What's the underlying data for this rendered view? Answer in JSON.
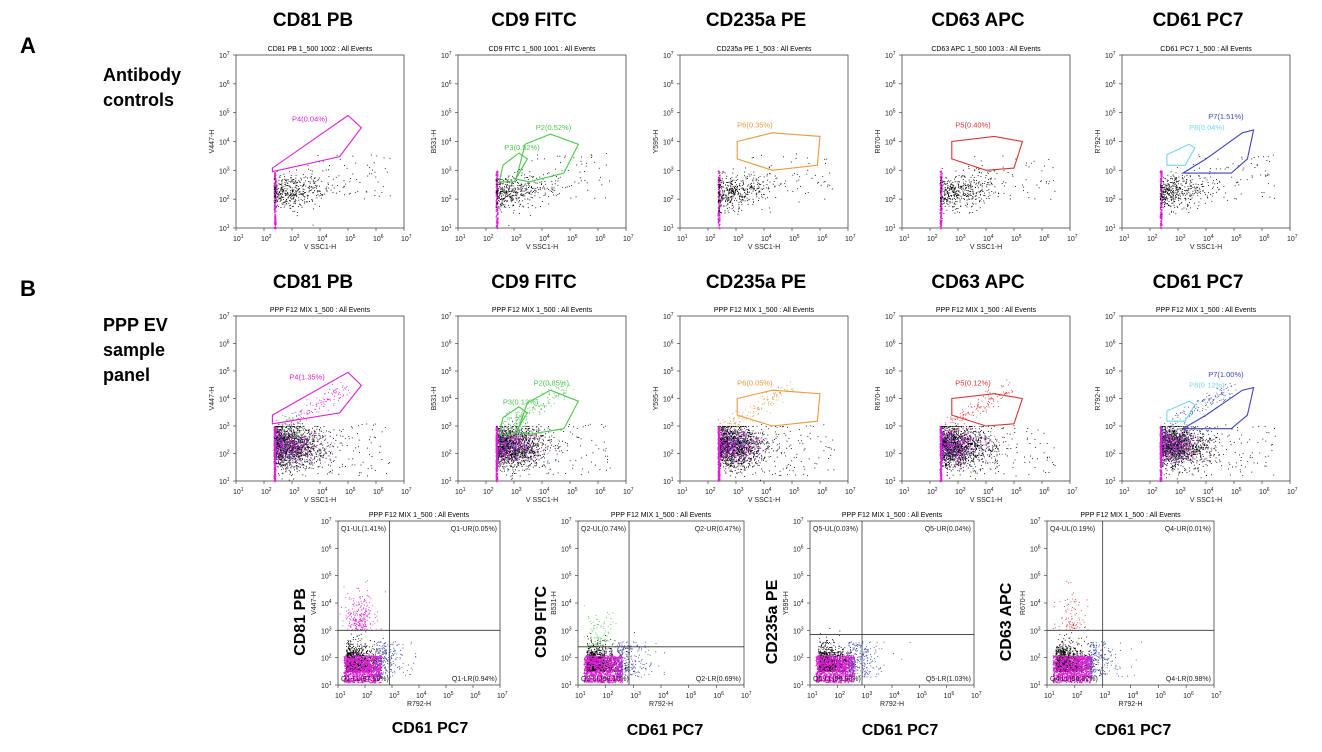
{
  "panels": [
    {
      "letter": "A",
      "side_label": [
        "Antibody",
        "controls"
      ]
    },
    {
      "letter": "B",
      "side_label": [
        "PPP EV",
        "sample",
        "panel"
      ]
    }
  ],
  "marker_titles_row1": [
    "CD81 PB",
    "CD9 FITC",
    "CD235a PE",
    "CD63 APC",
    "CD61 PC7"
  ],
  "marker_titles_row2": [
    "CD81 PB",
    "CD9 FITC",
    "CD235a PE",
    "CD63 APC",
    "CD61 PC7"
  ],
  "quad_axis_titles": {
    "y": [
      "CD81 PB",
      "CD9 FITC",
      "CD235a PE",
      "CD63 APC"
    ],
    "x": [
      "CD61 PC7",
      "CD61 PC7",
      "CD61 PC7",
      "CD61 PC7"
    ]
  },
  "colors": {
    "magenta": "#e020d8",
    "green": "#4cc84c",
    "orange": "#e89a40",
    "red": "#d83434",
    "blue": "#3848b8",
    "cyan": "#7ad8e8",
    "black": "#000000",
    "axis": "#555555"
  },
  "chart_data": [
    {
      "type": "scatter",
      "panel": "A",
      "title": "CD81 PB 1_500 1002 : All Events",
      "xlabel": "V SSC1-H",
      "ylabel": "V447-H",
      "xscale": "log",
      "yscale": "log",
      "xlim": [
        10,
        10000000
      ],
      "ylim": [
        10,
        10000000
      ],
      "gates": [
        {
          "name": "P4(0.04%)",
          "color": "magenta",
          "polygon": [
            [
              200,
              900
            ],
            [
              200,
              1200
            ],
            [
              100000,
              80000
            ],
            [
              300000,
              30000
            ],
            [
              50000,
              3000
            ]
          ],
          "label_at": [
            1000,
            50000
          ]
        }
      ],
      "dot_colors": [
        "black"
      ],
      "density": "control"
    },
    {
      "type": "scatter",
      "panel": "A",
      "title": "CD9 FITC 1_500 1001 : All Events",
      "xlabel": "V SSC1-H",
      "ylabel": "B531-H",
      "xscale": "log",
      "yscale": "log",
      "xlim": [
        10,
        10000000
      ],
      "ylim": [
        10,
        10000000
      ],
      "gates": [
        {
          "name": "P2(0.52%)",
          "color": "green",
          "polygon": [
            [
              1200,
              500
            ],
            [
              2500,
              8000
            ],
            [
              20000,
              18000
            ],
            [
              200000,
              8000
            ],
            [
              60000,
              800
            ],
            [
              3500,
              400
            ]
          ],
          "label_at": [
            6000,
            25000
          ]
        },
        {
          "name": "P3(0.52%)",
          "color": "green",
          "polygon": [
            [
              300,
              400
            ],
            [
              400,
              1500
            ],
            [
              1500,
              4000
            ],
            [
              3000,
              2500
            ],
            [
              1000,
              400
            ]
          ],
          "label_at": [
            450,
            5000
          ]
        }
      ],
      "dot_colors": [
        "black"
      ],
      "density": "control"
    },
    {
      "type": "scatter",
      "panel": "A",
      "title": "CD235a PE 1_503 : All Events",
      "xlabel": "V SSC1-H",
      "ylabel": "Y595-H",
      "xscale": "log",
      "yscale": "log",
      "xlim": [
        10,
        10000000
      ],
      "ylim": [
        10,
        10000000
      ],
      "gates": [
        {
          "name": "P6(0.35%)",
          "color": "orange",
          "polygon": [
            [
              1100,
              2500
            ],
            [
              1100,
              10000
            ],
            [
              20000,
              20000
            ],
            [
              1000000,
              15000
            ],
            [
              800000,
              1500
            ],
            [
              20000,
              1000
            ]
          ],
          "label_at": [
            1100,
            30000
          ]
        }
      ],
      "dot_colors": [
        "black"
      ],
      "density": "control"
    },
    {
      "type": "scatter",
      "panel": "A",
      "title": "CD63 APC 1_500 1003 : All Events",
      "xlabel": "V SSC1-H",
      "ylabel": "R670-H",
      "xscale": "log",
      "yscale": "log",
      "xlim": [
        10,
        10000000
      ],
      "ylim": [
        10,
        10000000
      ],
      "gates": [
        {
          "name": "P5(0.40%)",
          "color": "red",
          "polygon": [
            [
              600,
              2500
            ],
            [
              600,
              10000
            ],
            [
              20000,
              15000
            ],
            [
              200000,
              10000
            ],
            [
              100000,
              1200
            ],
            [
              10000,
              1000
            ]
          ],
          "label_at": [
            800,
            30000
          ]
        }
      ],
      "dot_colors": [
        "black"
      ],
      "density": "control"
    },
    {
      "type": "scatter",
      "panel": "A",
      "title": "CD61 PC7 1_500 : All Events",
      "xlabel": "V SSC1-H",
      "ylabel": "R792-H",
      "xscale": "log",
      "yscale": "log",
      "xlim": [
        10,
        10000000
      ],
      "ylim": [
        10,
        10000000
      ],
      "gates": [
        {
          "name": "P7(1.51%)",
          "color": "blue",
          "polygon": [
            [
              1500,
              800
            ],
            [
              10000,
              2500
            ],
            [
              200000,
              20000
            ],
            [
              500000,
              25000
            ],
            [
              300000,
              2500
            ],
            [
              80000,
              800
            ]
          ],
          "label_at": [
            12000,
            60000
          ]
        },
        {
          "name": "P8(0.04%)",
          "color": "cyan",
          "polygon": [
            [
              400,
              1500
            ],
            [
              400,
              3500
            ],
            [
              2500,
              8000
            ],
            [
              4000,
              6000
            ],
            [
              1800,
              1500
            ]
          ],
          "label_at": [
            2500,
            25000
          ]
        }
      ],
      "dot_colors": [
        "black"
      ],
      "density": "control"
    },
    {
      "type": "scatter",
      "panel": "B",
      "title": "PPP F12 MIX 1_500 : All Events",
      "xlabel": "V SSC1-H",
      "ylabel": "V447-H",
      "xscale": "log",
      "yscale": "log",
      "xlim": [
        10,
        10000000
      ],
      "ylim": [
        10,
        10000000
      ],
      "gates": [
        {
          "name": "P4(1.35%)",
          "color": "magenta",
          "polygon": [
            [
              200,
              1200
            ],
            [
              200,
              2500
            ],
            [
              100000,
              90000
            ],
            [
              300000,
              30000
            ],
            [
              50000,
              3000
            ]
          ],
          "label_at": [
            800,
            50000
          ]
        }
      ],
      "dot_colors": [
        "black",
        "magenta",
        "blue",
        "green"
      ],
      "density": "sample"
    },
    {
      "type": "scatter",
      "panel": "B",
      "title": "PPP F12 MIX 1_500 : All Events",
      "xlabel": "V SSC1-H",
      "ylabel": "B531-H",
      "xscale": "log",
      "yscale": "log",
      "xlim": [
        10,
        10000000
      ],
      "ylim": [
        10,
        10000000
      ],
      "gates": [
        {
          "name": "P2(0.85%)",
          "color": "green",
          "polygon": [
            [
              1300,
              600
            ],
            [
              3000,
              7000
            ],
            [
              20000,
              20000
            ],
            [
              200000,
              8000
            ],
            [
              60000,
              800
            ],
            [
              3500,
              500
            ]
          ],
          "label_at": [
            5000,
            30000
          ]
        },
        {
          "name": "P3(0.13%)",
          "color": "green",
          "polygon": [
            [
              300,
              500
            ],
            [
              400,
              2000
            ],
            [
              1500,
              5000
            ],
            [
              3000,
              3000
            ],
            [
              1000,
              500
            ]
          ],
          "label_at": [
            400,
            6000
          ]
        }
      ],
      "dot_colors": [
        "black",
        "magenta",
        "blue",
        "green"
      ],
      "density": "sample"
    },
    {
      "type": "scatter",
      "panel": "B",
      "title": "PPP F12 MIX 1_500 : All Events",
      "xlabel": "V SSC1-H",
      "ylabel": "Y595-H",
      "xscale": "log",
      "yscale": "log",
      "xlim": [
        10,
        10000000
      ],
      "ylim": [
        10,
        10000000
      ],
      "gates": [
        {
          "name": "P6(0.05%)",
          "color": "orange",
          "polygon": [
            [
              1100,
              2500
            ],
            [
              1100,
              10000
            ],
            [
              20000,
              20000
            ],
            [
              1000000,
              15000
            ],
            [
              800000,
              1500
            ],
            [
              20000,
              1000
            ]
          ],
          "label_at": [
            1100,
            30000
          ]
        }
      ],
      "dot_colors": [
        "black",
        "magenta",
        "blue"
      ],
      "density": "sample"
    },
    {
      "type": "scatter",
      "panel": "B",
      "title": "PPP F12 MIX 1_500 : All Events",
      "xlabel": "V SSC1-H",
      "ylabel": "R670-H",
      "xscale": "log",
      "yscale": "log",
      "xlim": [
        10,
        10000000
      ],
      "ylim": [
        10,
        10000000
      ],
      "gates": [
        {
          "name": "P5(0.12%)",
          "color": "red",
          "polygon": [
            [
              600,
              2500
            ],
            [
              600,
              10000
            ],
            [
              20000,
              15000
            ],
            [
              200000,
              10000
            ],
            [
              100000,
              1200
            ],
            [
              10000,
              1000
            ]
          ],
          "label_at": [
            800,
            30000
          ]
        }
      ],
      "dot_colors": [
        "black",
        "magenta",
        "blue",
        "red"
      ],
      "density": "sample"
    },
    {
      "type": "scatter",
      "panel": "B",
      "title": "PPP F12 MIX 1_500 : All Events",
      "xlabel": "V SSC1-H",
      "ylabel": "R792-H",
      "xscale": "log",
      "yscale": "log",
      "xlim": [
        10,
        10000000
      ],
      "ylim": [
        10,
        10000000
      ],
      "gates": [
        {
          "name": "P7(1.00%)",
          "color": "blue",
          "polygon": [
            [
              1500,
              800
            ],
            [
              10000,
              2500
            ],
            [
              200000,
              20000
            ],
            [
              500000,
              25000
            ],
            [
              300000,
              2500
            ],
            [
              80000,
              800
            ]
          ],
          "label_at": [
            12000,
            60000
          ]
        },
        {
          "name": "P8(0.12%)",
          "color": "cyan",
          "polygon": [
            [
              400,
              1500
            ],
            [
              400,
              3500
            ],
            [
              2500,
              8000
            ],
            [
              4000,
              6000
            ],
            [
              1800,
              1500
            ]
          ],
          "label_at": [
            2500,
            25000
          ]
        }
      ],
      "dot_colors": [
        "black",
        "magenta",
        "blue"
      ],
      "density": "sample"
    },
    {
      "type": "scatter",
      "panel": "B-quad",
      "title": "PPP F12 MIX 1_500 : All Events",
      "xlabel": "R792-H",
      "ylabel": "V447-H",
      "xscale": "log",
      "yscale": "log",
      "xlim": [
        10,
        10000000
      ],
      "ylim": [
        10,
        10000000
      ],
      "quad_x": 800,
      "quad_y": 1000,
      "quadrants": {
        "UL": "Q1-UL(1.41%)",
        "UR": "Q1-UR(0.05%)",
        "LL": "Q1-LL(97.59%)",
        "LR": "Q1-LR(0.94%)"
      },
      "dot_colors": [
        "black",
        "magenta",
        "blue"
      ],
      "density": "quad",
      "spike": "magenta"
    },
    {
      "type": "scatter",
      "panel": "B-quad",
      "title": "PPP F12 MIX 1_500 : All Events",
      "xlabel": "R792-H",
      "ylabel": "B531-H",
      "xscale": "log",
      "yscale": "log",
      "xlim": [
        10,
        10000000
      ],
      "ylim": [
        10,
        10000000
      ],
      "quad_x": 700,
      "quad_y": 250,
      "quadrants": {
        "UL": "Q2-UL(0.74%)",
        "UR": "Q2-UR(0.47%)",
        "LL": "Q2-LL(98.10%)",
        "LR": "Q2-LR(0.69%)"
      },
      "dot_colors": [
        "black",
        "magenta",
        "blue",
        "green"
      ],
      "density": "quad",
      "spike": "green"
    },
    {
      "type": "scatter",
      "panel": "B-quad",
      "title": "PPP F12 MIX 1_500 : All Events",
      "xlabel": "R792-H",
      "ylabel": "Y595-H",
      "xscale": "log",
      "yscale": "log",
      "xlim": [
        10,
        10000000
      ],
      "ylim": [
        10,
        10000000
      ],
      "quad_x": 800,
      "quad_y": 700,
      "quadrants": {
        "UL": "Q5-UL(0.03%)",
        "UR": "Q5-UR(0.04%)",
        "LL": "Q5-LL(98.90%)",
        "LR": "Q5-LR(1.03%)"
      },
      "dot_colors": [
        "black",
        "magenta",
        "blue"
      ],
      "density": "quad",
      "spike": "none"
    },
    {
      "type": "scatter",
      "panel": "B-quad",
      "title": "PPP F12 MIX 1_500 : All Events",
      "xlabel": "R792-H",
      "ylabel": "R670-H",
      "xscale": "log",
      "yscale": "log",
      "xlim": [
        10,
        10000000
      ],
      "ylim": [
        10,
        10000000
      ],
      "quad_x": 1000,
      "quad_y": 1000,
      "quadrants": {
        "UL": "Q4-UL(0.19%)",
        "UR": "Q4-UR(0.01%)",
        "LL": "Q4-LL(98.82%)",
        "LR": "Q4-LR(0.98%)"
      },
      "dot_colors": [
        "black",
        "magenta",
        "blue",
        "red"
      ],
      "density": "quad",
      "spike": "red"
    }
  ]
}
